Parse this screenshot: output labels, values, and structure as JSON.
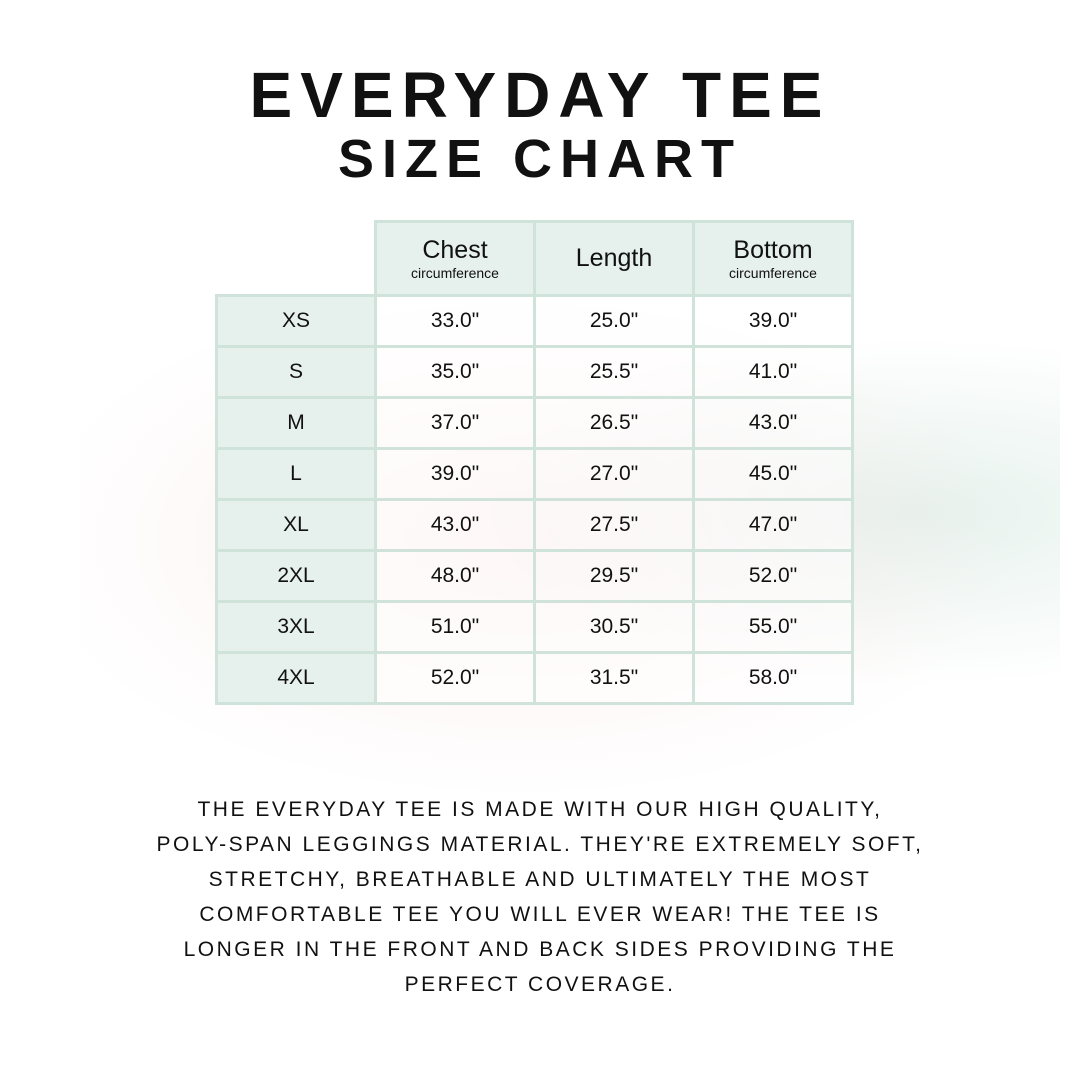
{
  "title_line1": "EVERYDAY TEE",
  "title_line2": "SIZE CHART",
  "colors": {
    "border": "#cfe3da",
    "header_fill": "#e6f0ec"
  },
  "table": {
    "headers": [
      {
        "label": "Chest",
        "sub": "circumference"
      },
      {
        "label": "Length",
        "sub": ""
      },
      {
        "label": "Bottom",
        "sub": "circumference"
      }
    ],
    "rows": [
      {
        "size": "XS",
        "chest": "33.0\"",
        "length": "25.0\"",
        "bottom": "39.0\""
      },
      {
        "size": "S",
        "chest": "35.0\"",
        "length": "25.5\"",
        "bottom": "41.0\""
      },
      {
        "size": "M",
        "chest": "37.0\"",
        "length": "26.5\"",
        "bottom": "43.0\""
      },
      {
        "size": "L",
        "chest": "39.0\"",
        "length": "27.0\"",
        "bottom": "45.0\""
      },
      {
        "size": "XL",
        "chest": "43.0\"",
        "length": "27.5\"",
        "bottom": "47.0\""
      },
      {
        "size": "2XL",
        "chest": "48.0\"",
        "length": "29.5\"",
        "bottom": "52.0\""
      },
      {
        "size": "3XL",
        "chest": "51.0\"",
        "length": "30.5\"",
        "bottom": "55.0\""
      },
      {
        "size": "4XL",
        "chest": "52.0\"",
        "length": "31.5\"",
        "bottom": "58.0\""
      }
    ]
  },
  "description_lines": [
    "The Everyday Tee is made with our high quality,",
    "poly-span leggings material. They're extremely soft,",
    "stretchy, breathable and ultimately the most",
    "comfortable tee you will ever wear! The tee is",
    "longer in the front and back sides providing the",
    "perfect coverage."
  ]
}
